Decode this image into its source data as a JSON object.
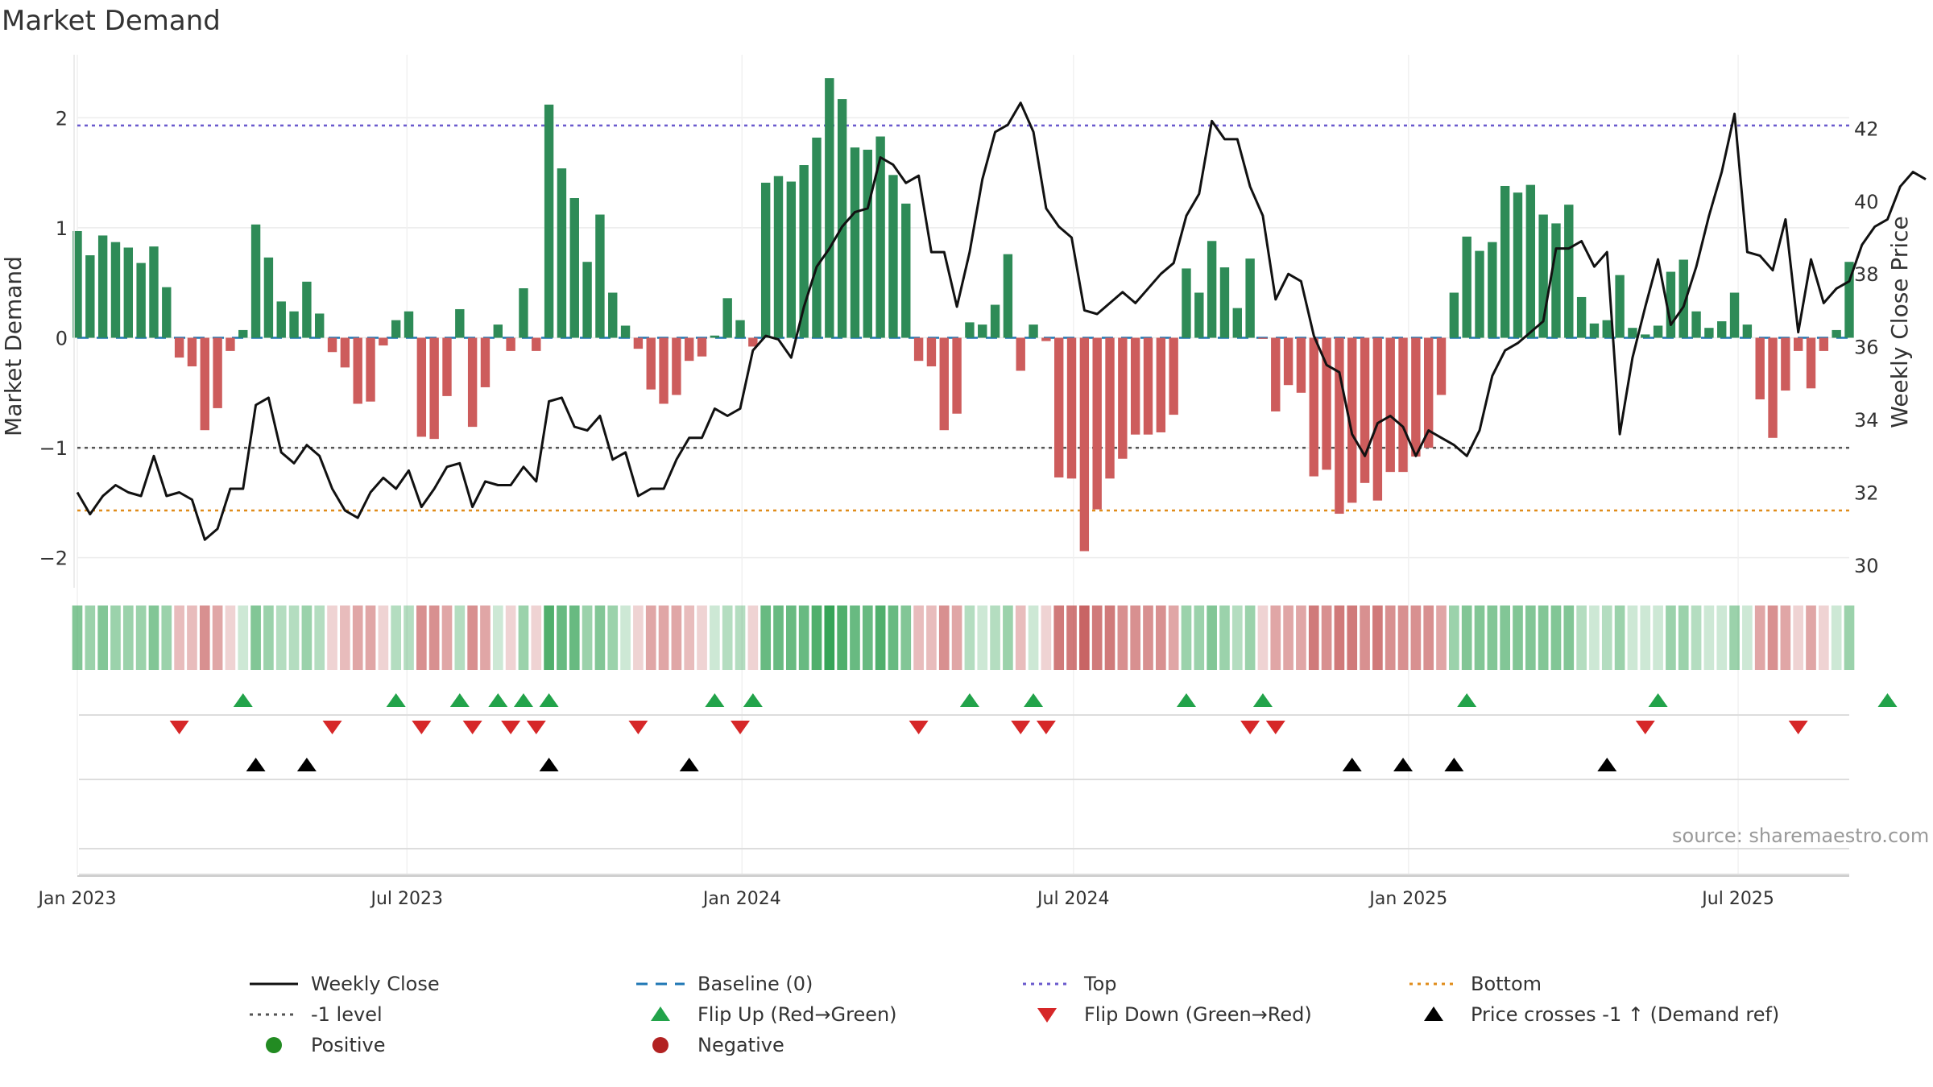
{
  "title": "Market Demand",
  "source": "source: sharemaestro.com",
  "colors": {
    "positive_bar": "#2e8b57",
    "negative_bar": "#cd5c5c",
    "close": "#111111",
    "baseline": "#1f77b4",
    "top": "#6a5acd",
    "bottom": "#e08c1a",
    "minus_one": "#555555",
    "flip_up": "#22a34a",
    "flip_down": "#d62728",
    "cross": "#000000"
  },
  "chart_data": {
    "type": "bar+line",
    "dates_start": "2023-01-01",
    "frequency": "weekly",
    "x_ticks": [
      "Jan 2023",
      "Jul 2023",
      "Jan 2024",
      "Jul 2024",
      "Jan 2025",
      "Jul 2025"
    ],
    "y_left": {
      "label": "Market Demand",
      "range": [
        -2.2,
        2.5
      ],
      "ticks": [
        -2,
        -1,
        0,
        1,
        2
      ]
    },
    "y_right": {
      "label": "Weekly Close Price",
      "range": [
        29.6,
        43.8
      ],
      "ticks": [
        30,
        32,
        34,
        36,
        38,
        40,
        42
      ]
    },
    "levels": {
      "top": 1.93,
      "bottom": -1.57,
      "minus_one": -1.0,
      "baseline": 0
    },
    "demand": [
      0.97,
      0.75,
      0.93,
      0.87,
      0.82,
      0.68,
      0.83,
      0.46,
      -0.18,
      -0.26,
      -0.84,
      -0.64,
      -0.12,
      0.07,
      1.03,
      0.73,
      0.33,
      0.24,
      0.51,
      0.22,
      -0.13,
      -0.27,
      -0.6,
      -0.58,
      -0.07,
      0.16,
      0.24,
      -0.9,
      -0.92,
      -0.53,
      0.26,
      -0.81,
      -0.45,
      0.12,
      -0.12,
      0.45,
      -0.12,
      2.12,
      1.54,
      1.27,
      0.69,
      1.12,
      0.41,
      0.11,
      -0.1,
      -0.47,
      -0.6,
      -0.52,
      -0.21,
      -0.17,
      0.02,
      0.36,
      0.16,
      -0.08,
      1.41,
      1.47,
      1.42,
      1.57,
      1.82,
      2.36,
      2.17,
      1.73,
      1.71,
      1.83,
      1.48,
      1.22,
      -0.21,
      -0.26,
      -0.84,
      -0.69,
      0.14,
      0.12,
      0.3,
      0.76,
      -0.3,
      0.12,
      -0.03,
      -1.27,
      -1.28,
      -1.94,
      -1.56,
      -1.28,
      -1.1,
      -0.88,
      -0.88,
      -0.86,
      -0.7,
      0.63,
      0.41,
      0.88,
      0.64,
      0.27,
      0.72,
      -0.01,
      -0.67,
      -0.43,
      -0.5,
      -1.26,
      -1.2,
      -1.6,
      -1.5,
      -1.32,
      -1.48,
      -1.22,
      -1.22,
      -1.08,
      -1.0,
      -0.52,
      0.41,
      0.92,
      0.79,
      0.87,
      1.38,
      1.32,
      1.39,
      1.12,
      1.04,
      1.21,
      0.37,
      0.13,
      0.16,
      0.57,
      0.09,
      0.03,
      0.11,
      0.6,
      0.71,
      0.24,
      0.09,
      0.15,
      0.41,
      0.12,
      -0.56,
      -0.91,
      -0.48,
      -0.12,
      -0.46,
      -0.12,
      0.07,
      0.69
    ],
    "weekly_close": [
      32.0,
      31.4,
      31.9,
      32.2,
      32.0,
      31.9,
      33.0,
      31.9,
      32.0,
      31.8,
      30.7,
      31.0,
      32.1,
      32.1,
      34.4,
      34.6,
      33.1,
      32.8,
      33.3,
      33.0,
      32.1,
      31.5,
      31.3,
      32.0,
      32.4,
      32.1,
      32.6,
      31.6,
      32.1,
      32.7,
      32.8,
      31.6,
      32.3,
      32.2,
      32.2,
      32.7,
      32.3,
      34.5,
      34.6,
      33.8,
      33.7,
      34.1,
      32.9,
      33.1,
      31.9,
      32.1,
      32.1,
      32.9,
      33.5,
      33.5,
      34.3,
      34.1,
      34.3,
      35.9,
      36.3,
      36.2,
      35.7,
      37.1,
      38.2,
      38.7,
      39.3,
      39.7,
      39.8,
      41.2,
      41.0,
      40.5,
      40.7,
      38.6,
      38.6,
      37.1,
      38.6,
      40.6,
      41.9,
      42.1,
      42.7,
      41.9,
      39.8,
      39.3,
      39.0,
      37.0,
      36.9,
      37.2,
      37.5,
      37.2,
      37.6,
      38.0,
      38.3,
      39.6,
      40.2,
      42.2,
      41.7,
      41.7,
      40.4,
      39.6,
      37.3,
      38.0,
      37.8,
      36.3,
      35.5,
      35.3,
      33.6,
      33.0,
      33.9,
      34.1,
      33.8,
      33.0,
      33.7,
      33.5,
      33.3,
      33.0,
      33.7,
      35.2,
      35.9,
      36.1,
      36.4,
      36.7,
      38.7,
      38.7,
      38.9,
      38.2,
      38.6,
      33.6,
      35.7,
      37.1,
      38.4,
      36.6,
      37.1,
      38.2,
      39.6,
      40.8,
      42.4,
      38.6,
      38.5,
      38.1,
      39.5,
      36.4,
      38.4,
      37.2,
      37.6,
      37.8,
      38.8,
      39.3,
      39.5,
      40.4,
      40.8,
      40.6
    ],
    "shading_levels": [
      4,
      3,
      4,
      3,
      3,
      3,
      4,
      3,
      -2,
      -2,
      -4,
      -3,
      -1,
      1,
      4,
      3,
      2,
      2,
      3,
      2,
      -1,
      -2,
      -3,
      -3,
      -1,
      2,
      2,
      -4,
      -4,
      -3,
      2,
      -4,
      -3,
      1,
      -1,
      3,
      -1,
      6,
      5,
      5,
      3,
      4,
      3,
      1,
      -1,
      -3,
      -3,
      -3,
      -2,
      -1,
      1,
      2,
      2,
      -1,
      5,
      5,
      5,
      5,
      6,
      7,
      6,
      5,
      5,
      6,
      5,
      4,
      -2,
      -2,
      -4,
      -3,
      2,
      1,
      2,
      3,
      -2,
      1,
      -1,
      -5,
      -5,
      -6,
      -5,
      -5,
      -4,
      -4,
      -4,
      -4,
      -3,
      3,
      3,
      4,
      3,
      2,
      3,
      -1,
      -3,
      -3,
      -3,
      -5,
      -4,
      -5,
      -5,
      -4,
      -5,
      -4,
      -4,
      -4,
      -4,
      -3,
      3,
      4,
      4,
      4,
      4,
      4,
      4,
      4,
      4,
      4,
      2,
      1,
      2,
      3,
      1,
      1,
      1,
      3,
      3,
      2,
      1,
      1,
      3,
      1,
      -3,
      -4,
      -3,
      -1,
      -3,
      -1,
      1,
      3
    ],
    "flip_up_weeks": [
      13,
      25,
      30,
      33,
      35,
      37,
      50,
      53,
      70,
      75,
      87,
      93,
      109,
      124,
      142
    ],
    "flip_down_weeks": [
      8,
      20,
      27,
      31,
      34,
      36,
      44,
      52,
      66,
      74,
      76,
      92,
      94,
      123,
      135
    ],
    "price_cross_weeks": [
      14,
      18,
      37,
      48,
      100,
      104,
      108,
      120
    ],
    "series": [
      {
        "name": "Weekly Close"
      },
      {
        "name": "-1 level"
      },
      {
        "name": "Positive"
      },
      {
        "name": "Baseline (0)"
      },
      {
        "name": "Flip Up (Red→Green)"
      },
      {
        "name": "Negative"
      },
      {
        "name": "Top"
      },
      {
        "name": "Flip Down (Green→Red)"
      },
      {
        "name": "Bottom"
      },
      {
        "name": "Price crosses -1 ↑ (Demand ref)"
      }
    ]
  },
  "legend": [
    {
      "label": "Weekly Close",
      "icon": "solid-line-icon"
    },
    {
      "label": "-1 level",
      "icon": "dotted-line-icon"
    },
    {
      "label": "Positive",
      "icon": "green-dot-icon"
    },
    {
      "label": "Baseline (0)",
      "icon": "dashed-line-icon"
    },
    {
      "label": "Flip Up (Red→Green)",
      "icon": "triangle-up-icon"
    },
    {
      "label": "Negative",
      "icon": "red-dot-icon"
    },
    {
      "label": "Top",
      "icon": "dotted-line-icon"
    },
    {
      "label": "Flip Down (Green→Red)",
      "icon": "triangle-down-icon"
    },
    {
      "label": "Bottom",
      "icon": "dotted-line-icon"
    },
    {
      "label": "Price crosses -1 ↑ (Demand ref)",
      "icon": "triangle-up-icon"
    }
  ]
}
